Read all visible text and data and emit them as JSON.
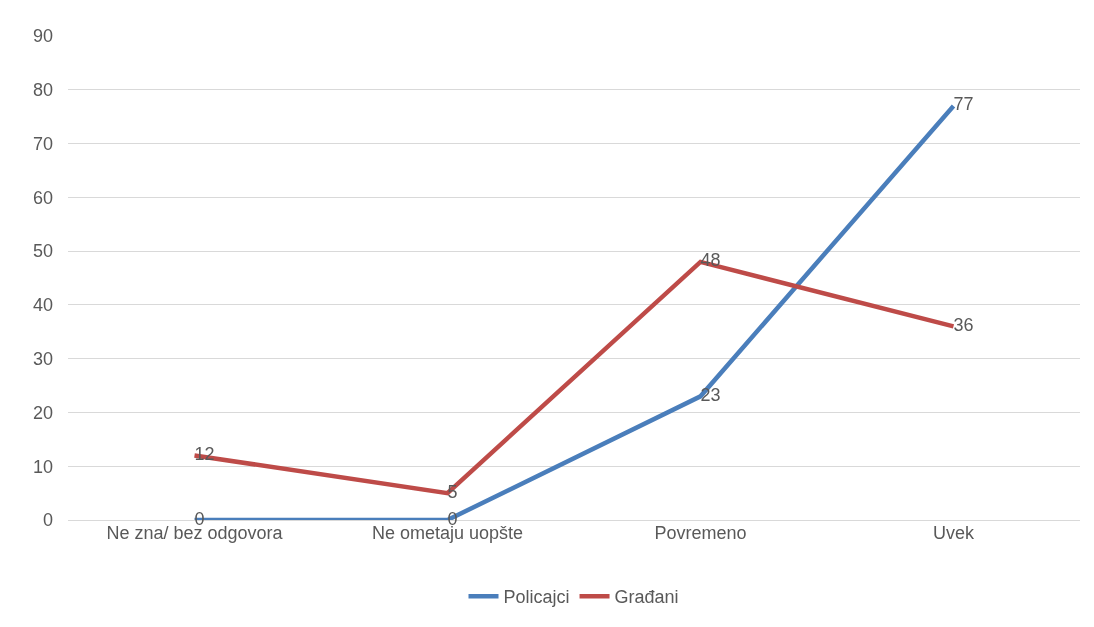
{
  "chart_data": {
    "type": "line",
    "categories": [
      "Ne zna/ bez odgovora",
      "Ne ometaju uopšte",
      "Povremeno",
      "Uvek"
    ],
    "series": [
      {
        "name": "Policajci",
        "color": "#4a7ebb",
        "values": [
          0,
          0,
          23,
          77
        ]
      },
      {
        "name": "Građani",
        "color": "#be4b48",
        "values": [
          12,
          5,
          48,
          36
        ]
      }
    ],
    "ylim": [
      0,
      90
    ],
    "yticks": [
      0,
      10,
      20,
      30,
      40,
      50,
      60,
      70,
      80,
      90
    ],
    "grid": "y",
    "legend": "bottom",
    "data_labels": true,
    "marker": "none",
    "line_style": "solid"
  }
}
